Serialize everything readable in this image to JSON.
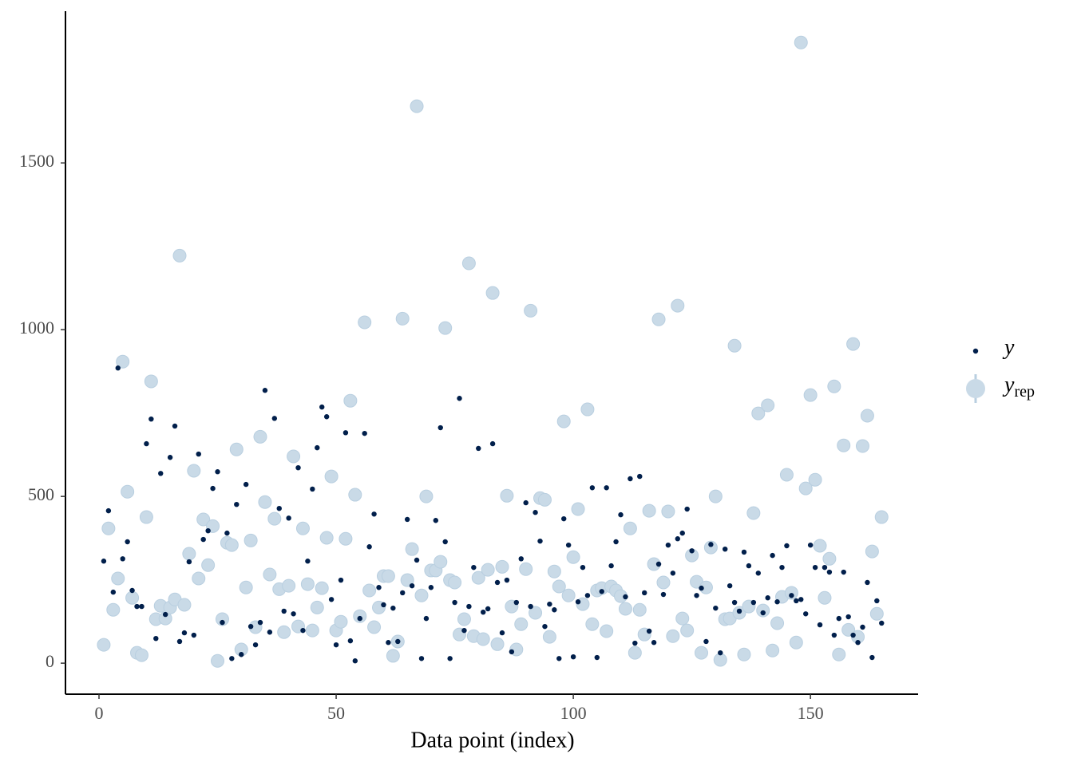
{
  "chart_data": {
    "type": "scatter",
    "x_label": "Data point (index)",
    "xlim": [
      -7.07,
      172.7
    ],
    "ylim": [
      -93,
      1955
    ],
    "xticks": [
      0,
      50,
      100,
      150
    ],
    "yticks": [
      0,
      500,
      1000,
      1500
    ],
    "grid": false,
    "legend": "right",
    "x": [
      1,
      2,
      3,
      4,
      5,
      6,
      7,
      8,
      9,
      10,
      11,
      12,
      13,
      14,
      15,
      16,
      17,
      18,
      19,
      20,
      21,
      22,
      23,
      24,
      25,
      26,
      27,
      28,
      29,
      30,
      31,
      32,
      33,
      34,
      35,
      36,
      37,
      38,
      39,
      40,
      41,
      42,
      43,
      44,
      45,
      46,
      47,
      48,
      49,
      50,
      51,
      52,
      53,
      54,
      55,
      56,
      57,
      58,
      59,
      60,
      61,
      62,
      63,
      64,
      65,
      66,
      67,
      68,
      69,
      70,
      71,
      72,
      73,
      74,
      75,
      76,
      77,
      78,
      79,
      80,
      81,
      82,
      83,
      84,
      85,
      86,
      87,
      88,
      89,
      90,
      91,
      92,
      93,
      94,
      95,
      96,
      97,
      98,
      99,
      100,
      101,
      102,
      103,
      104,
      105,
      106,
      107,
      108,
      109,
      110,
      111,
      112,
      113,
      114,
      115,
      116,
      117,
      118,
      119,
      120,
      121,
      122,
      123,
      124,
      125,
      126,
      127,
      128,
      129,
      130,
      131,
      132,
      133,
      134,
      135,
      136,
      137,
      138,
      139,
      140,
      141,
      142,
      143,
      144,
      145,
      146,
      147,
      148,
      149,
      150,
      151,
      152,
      153,
      154,
      155,
      156,
      157,
      158,
      159,
      160,
      161,
      162,
      163,
      164,
      165
    ],
    "series": [
      {
        "name": "y",
        "color": "#011f4b",
        "values": [
          306,
          457,
          213,
          885,
          313,
          364,
          218,
          170,
          170,
          658,
          732,
          74,
          569,
          146,
          617,
          711,
          65,
          91,
          304,
          84,
          627,
          371,
          397,
          524,
          574,
          122,
          390,
          14,
          476,
          26,
          536,
          110,
          55,
          122,
          818,
          93,
          734,
          464,
          156,
          435,
          148,
          586,
          98,
          306,
          522,
          646,
          768,
          739,
          191,
          55,
          249,
          691,
          67,
          7,
          134,
          689,
          349,
          447,
          227,
          175,
          62,
          165,
          65,
          211,
          431,
          232,
          309,
          14,
          134,
          227,
          428,
          706,
          364,
          14,
          182,
          794,
          98,
          170,
          287,
          644,
          153,
          163,
          658,
          242,
          91,
          249,
          34,
          182,
          313,
          481,
          170,
          452,
          366,
          110,
          177,
          160,
          14,
          433,
          354,
          19,
          184,
          287,
          203,
          526,
          17,
          215,
          526,
          292,
          364,
          445,
          199,
          553,
          60,
          560,
          211,
          96,
          62,
          297,
          206,
          354,
          270,
          373,
          390,
          462,
          337,
          203,
          225,
          65,
          356,
          165,
          31,
          342,
          232,
          182,
          156,
          333,
          292,
          182,
          270,
          151,
          196,
          323,
          184,
          287,
          352,
          203,
          187,
          191,
          148,
          354,
          287,
          115,
          287,
          273,
          84,
          134,
          273,
          139,
          84,
          62,
          108,
          242,
          17,
          187,
          120
        ]
      },
      {
        "name": "y",
        "subscript": "rep",
        "color": "#c9dae7",
        "values": [
          55,
          404,
          160,
          254,
          904,
          514,
          196,
          31,
          24,
          438,
          845,
          132,
          172,
          134,
          167,
          191,
          1222,
          175,
          328,
          577,
          254,
          431,
          294,
          411,
          7,
          132,
          361,
          354,
          641,
          41,
          227,
          368,
          108,
          679,
          483,
          266,
          433,
          222,
          93,
          232,
          620,
          110,
          404,
          237,
          98,
          167,
          225,
          376,
          560,
          98,
          124,
          373,
          787,
          505,
          141,
          1022,
          218,
          108,
          167,
          261,
          261,
          22,
          65,
          1033,
          249,
          342,
          1670,
          203,
          500,
          278,
          278,
          304,
          1005,
          249,
          242,
          86,
          132,
          1199,
          81,
          256,
          72,
          280,
          1110,
          57,
          289,
          502,
          170,
          41,
          117,
          282,
          1057,
          151,
          495,
          490,
          79,
          275,
          230,
          725,
          203,
          318,
          462,
          177,
          761,
          117,
          218,
          225,
          96,
          230,
          218,
          201,
          163,
          404,
          31,
          160,
          86,
          457,
          297,
          1031,
          242,
          455,
          81,
          1072,
          134,
          98,
          323,
          244,
          31,
          227,
          347,
          500,
          10,
          132,
          134,
          952,
          151,
          26,
          170,
          450,
          749,
          158,
          773,
          38,
          120,
          199,
          565,
          211,
          62,
          1861,
          524,
          804,
          550,
          352,
          196,
          313,
          830,
          26,
          653,
          100,
          957,
          79,
          651,
          742,
          335,
          148,
          438
        ]
      }
    ]
  }
}
